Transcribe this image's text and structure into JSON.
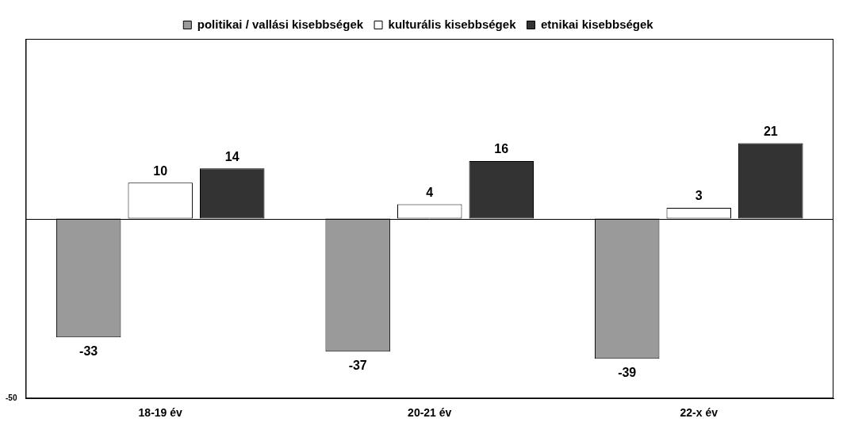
{
  "chart_data": {
    "type": "bar",
    "categories": [
      "18-19 év",
      "20-21 év",
      "22-x év"
    ],
    "series": [
      {
        "name": "politikai / vallási kisebbségek",
        "color": "#9a9a9a",
        "values": [
          -33,
          -37,
          -39
        ]
      },
      {
        "name": "kulturális kisebbségek",
        "color": "#ffffff",
        "values": [
          10,
          4,
          3
        ]
      },
      {
        "name": "etnikai kisebbségek",
        "color": "#333333",
        "values": [
          14,
          16,
          21
        ]
      }
    ],
    "ylim": [
      -50,
      50
    ],
    "yticks": [
      -50
    ],
    "grid": false,
    "legend": "top",
    "data_labels": true
  }
}
